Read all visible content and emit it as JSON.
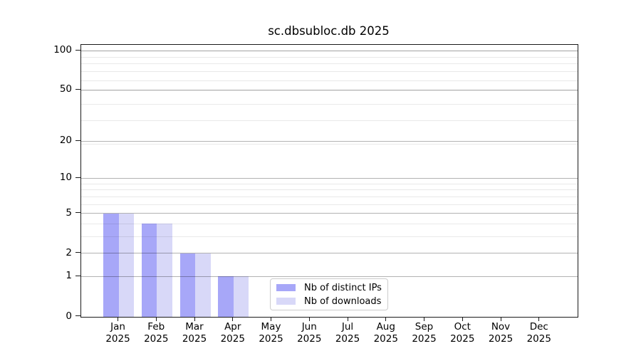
{
  "title": "sc.dbsubloc.db 2025",
  "chart_data": {
    "type": "bar",
    "title": "sc.dbsubloc.db 2025",
    "categories": [
      "Jan",
      "Feb",
      "Mar",
      "Apr",
      "May",
      "Jun",
      "Jul",
      "Aug",
      "Sep",
      "Oct",
      "Nov",
      "Dec"
    ],
    "x_tick_line2": "2025",
    "series": [
      {
        "name": "Nb of distinct IPs",
        "color": "#a7a7f8",
        "values": [
          5,
          4,
          2,
          1,
          0,
          0,
          0,
          0,
          0,
          0,
          0,
          0
        ]
      },
      {
        "name": "Nb of downloads",
        "color": "#d8d8f8",
        "values": [
          5,
          4,
          2,
          1,
          0,
          0,
          0,
          0,
          0,
          0,
          0,
          0
        ]
      }
    ],
    "yscale": "log(1+y)",
    "y_major_ticks": [
      0,
      1,
      2,
      5,
      10,
      20,
      50,
      100
    ],
    "y_minor_ticks": [
      3,
      4,
      6,
      7,
      8,
      9,
      19,
      29,
      39,
      49,
      59,
      69,
      79,
      89,
      99
    ],
    "ylim": [
      0,
      110
    ],
    "grid": "horizontal",
    "legend_position": "lower center"
  },
  "legend": {
    "items": [
      {
        "label": "Nb of distinct IPs",
        "color": "#a7a7f8"
      },
      {
        "label": "Nb of downloads",
        "color": "#d8d8f8"
      }
    ]
  },
  "colors": {
    "bar_distinct_ips": "#a7a7f8",
    "bar_downloads": "#d8d8f8",
    "major_grid": "#b3b3b3",
    "minor_grid": "#eaeaea",
    "spine": "#1a1a1a",
    "text": "#000000",
    "legend_border": "#cccccc",
    "background": "#ffffff"
  }
}
